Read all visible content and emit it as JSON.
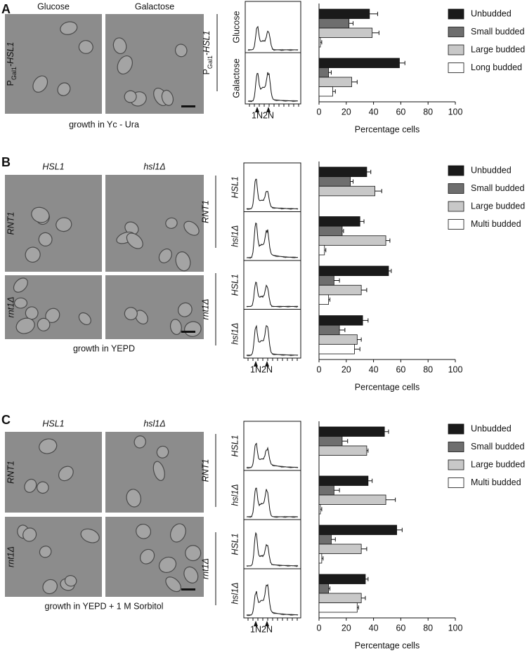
{
  "panels": [
    {
      "letter": "A",
      "column_labels": [
        "Glucose",
        "Galactose"
      ],
      "row_labels": [
        {
          "main": "P",
          "sub": "Gal1",
          "rest": "-HSL1"
        }
      ],
      "growth": "growth in Yc - Ura",
      "facs_groups": [
        {
          "main": "P",
          "sub": "Gal1",
          "rest": "-HSL1"
        }
      ],
      "facs_markers": [
        "1N",
        "2N"
      ]
    },
    {
      "letter": "B",
      "column_labels": [
        "HSL1",
        "hsl1Δ"
      ],
      "row_labels": [
        "RNT1",
        "rnt1Δ"
      ],
      "growth": "growth in YEPD",
      "facs_groups": [
        "RNT1",
        "rnt1Δ"
      ],
      "facs_markers": [
        "1N",
        "2N"
      ]
    },
    {
      "letter": "C",
      "column_labels": [
        "HSL1",
        "hsl1Δ"
      ],
      "row_labels": [
        "RNT1",
        "rnt1Δ"
      ],
      "growth": "growth in YEPD + 1 M Sorbitol",
      "facs_groups": [
        "RNT1",
        "rnt1Δ"
      ],
      "facs_markers": [
        "1N",
        "2N"
      ]
    }
  ],
  "chart_data": [
    {
      "type": "bar",
      "orientation": "horizontal",
      "categories": [
        "Glucose",
        "Galactose"
      ],
      "series": [
        {
          "name": "Unbudded",
          "color": "#1a1a1a",
          "values": [
            37,
            59
          ],
          "errors": [
            6,
            4
          ]
        },
        {
          "name": "Small budded",
          "color": "#6e6e6e",
          "values": [
            22,
            7
          ],
          "errors": [
            3,
            2
          ]
        },
        {
          "name": "Large budded",
          "color": "#c8c8c8",
          "values": [
            39,
            24
          ],
          "errors": [
            5,
            4
          ]
        },
        {
          "name": "Long budded",
          "color": "#ffffff",
          "values": [
            1,
            10
          ],
          "errors": [
            1,
            2
          ]
        }
      ],
      "xlim": [
        0,
        100
      ],
      "xticks": [
        0,
        20,
        40,
        60,
        80,
        100
      ],
      "xlabel": "Percentage cells",
      "grid": false
    },
    {
      "type": "bar",
      "orientation": "horizontal",
      "categories": [
        "HSL1",
        "hsl1Δ",
        "HSL1",
        "hsl1Δ"
      ],
      "series": [
        {
          "name": "Unbudded",
          "color": "#1a1a1a",
          "values": [
            35,
            30,
            51,
            32
          ],
          "errors": [
            3,
            3,
            2,
            4
          ]
        },
        {
          "name": "Small budded",
          "color": "#6e6e6e",
          "values": [
            23,
            17,
            11,
            15
          ],
          "errors": [
            2,
            1,
            4,
            4
          ]
        },
        {
          "name": "Large budded",
          "color": "#c8c8c8",
          "values": [
            41,
            49,
            31,
            28
          ],
          "errors": [
            5,
            3,
            4,
            3
          ]
        },
        {
          "name": "Multi budded",
          "color": "#ffffff",
          "values": [
            0,
            4,
            7,
            26
          ],
          "errors": [
            0,
            1,
            1,
            4
          ]
        }
      ],
      "xlim": [
        0,
        100
      ],
      "xticks": [
        0,
        20,
        40,
        60,
        80,
        100
      ],
      "xlabel": "Percentage cells",
      "grid": false
    },
    {
      "type": "bar",
      "orientation": "horizontal",
      "categories": [
        "HSL1",
        "hsl1Δ",
        "HSL1",
        "hsl1Δ"
      ],
      "series": [
        {
          "name": "Unbudded",
          "color": "#1a1a1a",
          "values": [
            48,
            36,
            57,
            34
          ],
          "errors": [
            3,
            3,
            4,
            2
          ]
        },
        {
          "name": "Small budded",
          "color": "#6e6e6e",
          "values": [
            17,
            11,
            9,
            7
          ],
          "errors": [
            4,
            4,
            3,
            1
          ]
        },
        {
          "name": "Large budded",
          "color": "#c8c8c8",
          "values": [
            35,
            49,
            31,
            31
          ],
          "errors": [
            1,
            7,
            4,
            3
          ]
        },
        {
          "name": "Multi budded",
          "color": "#ffffff",
          "values": [
            0,
            1,
            2,
            28
          ],
          "errors": [
            0,
            1,
            1,
            1
          ]
        }
      ],
      "xlim": [
        0,
        100
      ],
      "xticks": [
        0,
        20,
        40,
        60,
        80,
        100
      ],
      "xlabel": "Percentage cells",
      "grid": false
    }
  ]
}
